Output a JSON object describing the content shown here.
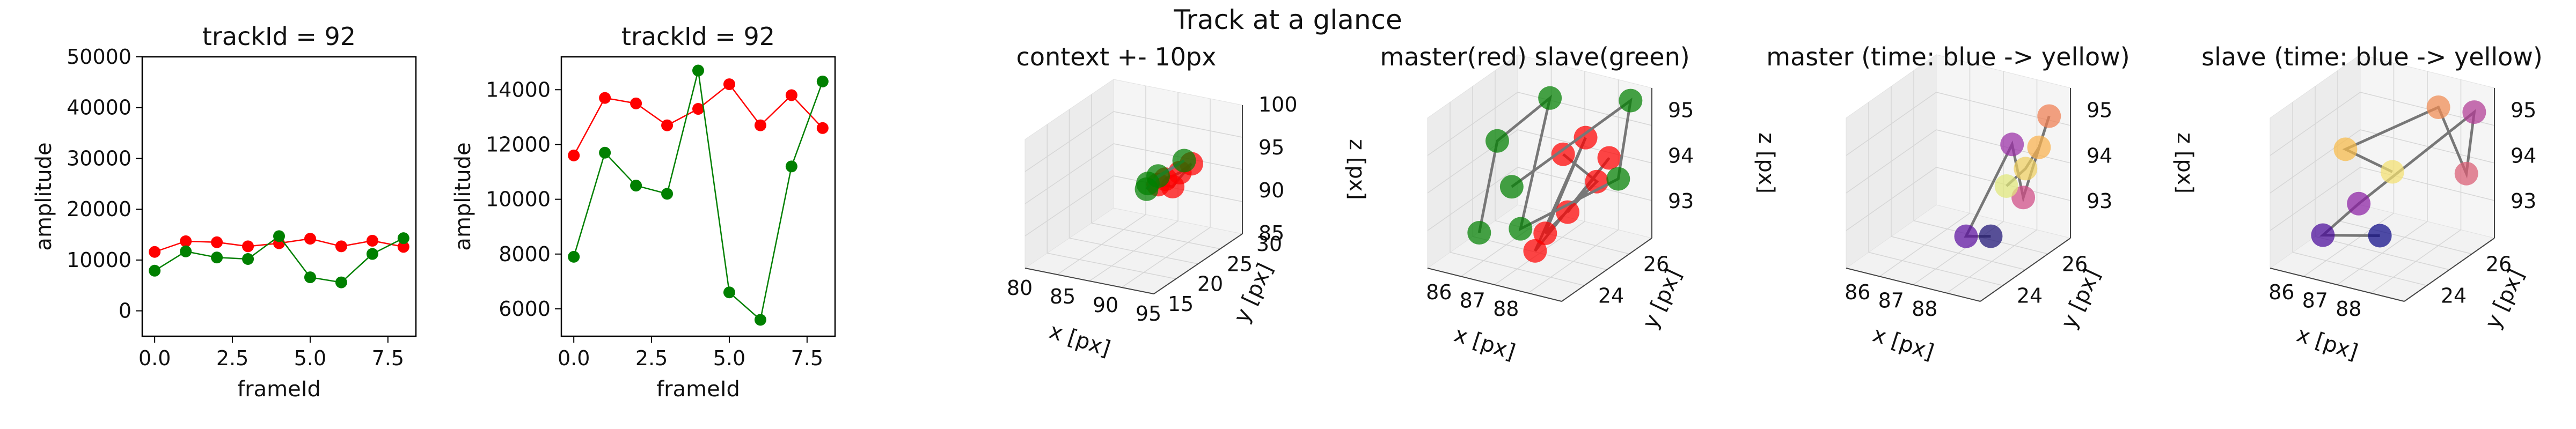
{
  "figure_title": "Track at a glance",
  "chart_data": [
    {
      "type": "line",
      "title": "trackId = 92",
      "xlabel": "frameId",
      "ylabel": "amplitude",
      "xlim": [
        -0.4,
        8.4
      ],
      "ylim": [
        -5000,
        50000
      ],
      "xticks": [
        "0.0",
        "2.5",
        "5.0",
        "7.5"
      ],
      "yticks": [
        "0",
        "10000",
        "20000",
        "30000",
        "40000",
        "50000"
      ],
      "x": [
        0,
        1,
        2,
        3,
        4,
        5,
        6,
        7,
        8
      ],
      "series": [
        {
          "color": "#ff0000",
          "values": [
            11600,
            13700,
            13500,
            12700,
            13300,
            14200,
            12700,
            13800,
            12600
          ]
        },
        {
          "color": "#008000",
          "values": [
            7900,
            11700,
            10500,
            10200,
            14700,
            6600,
            5600,
            11200,
            14300
          ]
        }
      ]
    },
    {
      "type": "line",
      "title": "trackId = 92",
      "xlabel": "frameId",
      "ylabel": "amplitude",
      "xlim": [
        -0.4,
        8.4
      ],
      "ylim": [
        5000,
        15200
      ],
      "xticks": [
        "0.0",
        "2.5",
        "5.0",
        "7.5"
      ],
      "yticks": [
        "6000",
        "8000",
        "10000",
        "12000",
        "14000"
      ],
      "x": [
        0,
        1,
        2,
        3,
        4,
        5,
        6,
        7,
        8
      ],
      "series": [
        {
          "color": "#ff0000",
          "values": [
            11600,
            13700,
            13500,
            12700,
            13300,
            14200,
            12700,
            13800,
            12600
          ]
        },
        {
          "color": "#008000",
          "values": [
            7900,
            11700,
            10500,
            10200,
            14700,
            6600,
            5600,
            11200,
            14300
          ]
        }
      ]
    },
    {
      "type": "scatter",
      "title": "context +- 10px",
      "xlabel": "x [px]",
      "ylabel": "y [px]",
      "zlabel": "z [px]",
      "xticks": [
        "80",
        "85",
        "90",
        "95"
      ],
      "yticks": [
        "15",
        "20",
        "25",
        "30"
      ],
      "zticks": [
        "85",
        "90",
        "95",
        "100"
      ],
      "series": [
        {
          "color": "#ff0000",
          "points": [
            [
              90.5,
              23.5,
              93.5
            ],
            [
              91.5,
              24.5,
              94
            ],
            [
              92.5,
              25,
              95
            ],
            [
              91,
              24,
              92.5
            ],
            [
              90,
              23,
              93
            ]
          ]
        },
        {
          "color": "#008000",
          "points": [
            [
              89,
              22.5,
              92.5
            ],
            [
              90,
              23,
              94
            ],
            [
              92,
              24.5,
              95.5
            ],
            [
              89.5,
              22,
              93.5
            ]
          ]
        }
      ]
    },
    {
      "type": "scatter",
      "title": "master(red) slave(green)",
      "xlabel": "x [px]",
      "ylabel": "y [px]",
      "zlabel": "z [px]",
      "xticks": [
        "86",
        "87",
        "88"
      ],
      "yticks": [
        "24",
        "26"
      ],
      "zticks": [
        "93",
        "94",
        "95"
      ],
      "series": [
        {
          "color": "#ff0000",
          "points": [
            [
              88.2,
              25.0,
              94.5
            ],
            [
              88.8,
              25.6,
              93.8
            ],
            [
              88.0,
              24.5,
              92.9
            ],
            [
              88.6,
              25.4,
              94.8
            ],
            [
              87.9,
              24.2,
              92.6
            ],
            [
              88.9,
              26.0,
              94.2
            ],
            [
              88.4,
              24.9,
              93.3
            ]
          ]
        },
        {
          "color": "#008000",
          "points": [
            [
              86.1,
              24.4,
              92.6
            ],
            [
              85.9,
              25.5,
              94.2
            ],
            [
              87.0,
              26.2,
              95.1
            ],
            [
              87.6,
              24.0,
              93.1
            ],
            [
              88.9,
              26.4,
              93.6
            ],
            [
              89.0,
              26.8,
              95.2
            ],
            [
              86.8,
              24.8,
              93.6
            ]
          ]
        }
      ]
    },
    {
      "type": "scatter",
      "title": "master (time: blue -> yellow)",
      "xlabel": "x [px]",
      "ylabel": "y [px]",
      "zlabel": "z [px]",
      "xticks": [
        "86",
        "87",
        "88"
      ],
      "yticks": [
        "24",
        "26"
      ],
      "zticks": [
        "93",
        "94",
        "95"
      ],
      "series": [
        {
          "colors": [
            "#1a0f73",
            "#5b0fa0",
            "#9a2ea6",
            "#d04b85",
            "#f07e52",
            "#f9b24d",
            "#f0d060",
            "#e0e87a"
          ],
          "points": [
            [
              88.4,
              25.1,
              92.7
            ],
            [
              88.0,
              24.6,
              92.8
            ],
            [
              88.7,
              25.6,
              94.6
            ],
            [
              88.9,
              25.8,
              93.4
            ],
            [
              89.2,
              26.5,
              95.0
            ],
            [
              89.1,
              26.2,
              94.4
            ],
            [
              88.9,
              25.9,
              94.0
            ],
            [
              88.6,
              25.5,
              93.7
            ]
          ]
        }
      ]
    },
    {
      "type": "scatter",
      "title": "slave (time: blue -> yellow)",
      "xlabel": "x [px]",
      "ylabel": "y [px]",
      "zlabel": "z [px]",
      "xticks": [
        "86",
        "87",
        "88"
      ],
      "yticks": [
        "24",
        "26"
      ],
      "zticks": [
        "93",
        "94",
        "95"
      ],
      "series": [
        {
          "colors": [
            "#0d0887",
            "#4a0a9a",
            "#8a1fa3",
            "#b23a94",
            "#d95c73",
            "#f08a52",
            "#f8bb4a",
            "#f4e070"
          ],
          "points": [
            [
              87.9,
              24.3,
              92.9
            ],
            [
              86.2,
              24.3,
              92.6
            ],
            [
              87.0,
              24.7,
              93.3
            ],
            [
              89.1,
              26.7,
              95.0
            ],
            [
              89.0,
              26.5,
              93.7
            ],
            [
              88.3,
              26.3,
              95.1
            ],
            [
              86.0,
              25.6,
              94.0
            ],
            [
              87.6,
              25.3,
              93.9
            ]
          ]
        }
      ]
    }
  ]
}
